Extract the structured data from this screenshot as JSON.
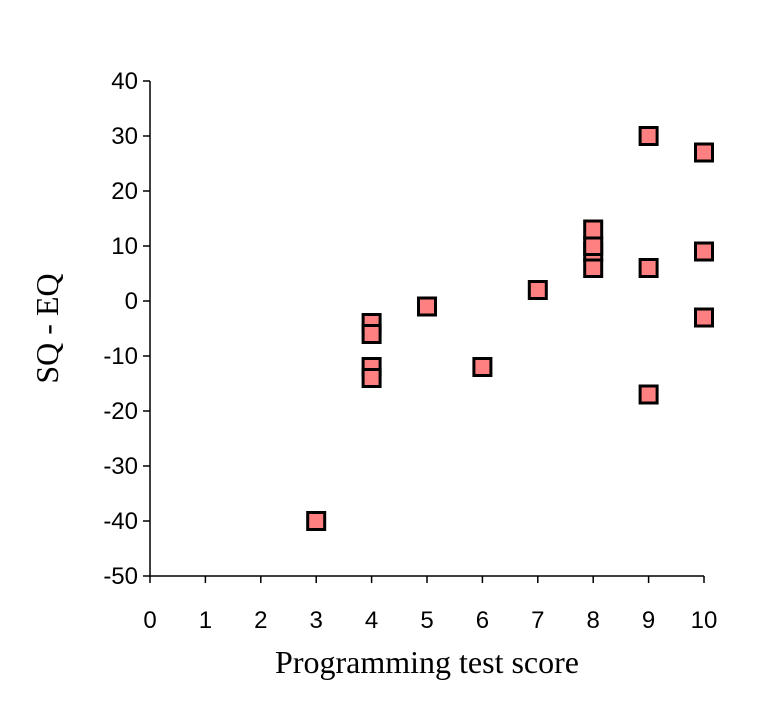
{
  "chart_data": {
    "type": "scatter",
    "title": "",
    "xlabel": "Programming test score",
    "ylabel": "SQ - EQ",
    "xlim": [
      0,
      10
    ],
    "ylim": [
      -50,
      40
    ],
    "xticks": [
      "0",
      "1",
      "2",
      "3",
      "4",
      "5",
      "6",
      "7",
      "8",
      "9",
      "10"
    ],
    "yticks": [
      "40",
      "30",
      "20",
      "10",
      "0",
      "-10",
      "-20",
      "-30",
      "-40",
      "-50"
    ],
    "grid": false,
    "legend": "none",
    "marker": "square",
    "marker_color": "#ff8080",
    "points": [
      {
        "x": 3,
        "y": -40
      },
      {
        "x": 4,
        "y": -4
      },
      {
        "x": 4,
        "y": -6
      },
      {
        "x": 4,
        "y": -12
      },
      {
        "x": 4,
        "y": -14
      },
      {
        "x": 5,
        "y": -1
      },
      {
        "x": 6,
        "y": -12
      },
      {
        "x": 7,
        "y": 2
      },
      {
        "x": 8,
        "y": 6
      },
      {
        "x": 8,
        "y": 9
      },
      {
        "x": 8,
        "y": 10
      },
      {
        "x": 8,
        "y": 13
      },
      {
        "x": 9,
        "y": 30
      },
      {
        "x": 9,
        "y": 6
      },
      {
        "x": 9,
        "y": -17
      },
      {
        "x": 10,
        "y": 27
      },
      {
        "x": 10,
        "y": 9
      },
      {
        "x": 10,
        "y": -3
      }
    ]
  }
}
